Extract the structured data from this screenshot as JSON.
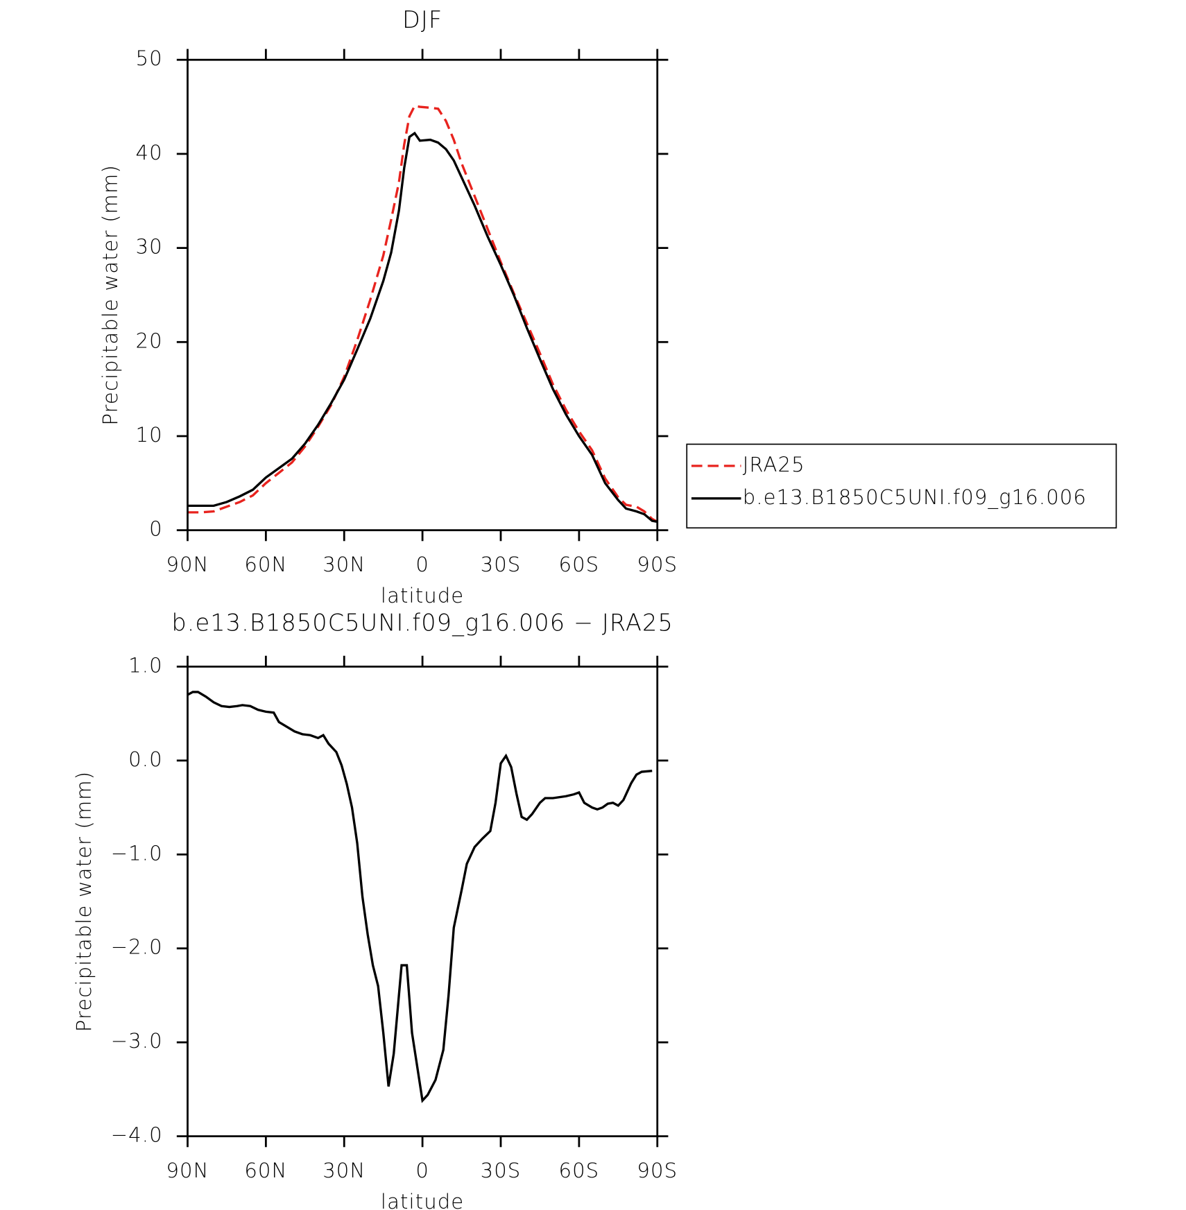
{
  "chart_data": [
    {
      "type": "line",
      "title": "DJF",
      "xlabel": "latitude",
      "ylabel": "Precipitable water (mm)",
      "x": [
        90,
        85,
        80,
        75,
        70,
        65,
        60,
        55,
        50,
        45,
        40,
        35,
        30,
        25,
        20,
        15,
        12,
        9,
        7,
        5,
        3,
        1,
        -3,
        -6,
        -9,
        -12,
        -15,
        -20,
        -25,
        -30,
        -35,
        -40,
        -45,
        -50,
        -55,
        -60,
        -65,
        -70,
        -75,
        -78,
        -82,
        -85,
        -88,
        -90
      ],
      "series": [
        {
          "name": "JRA25",
          "color": "#e8231e",
          "line_style": "dashed",
          "values": [
            1.9,
            1.9,
            2.0,
            2.5,
            3.0,
            3.7,
            5.0,
            6.1,
            7.2,
            8.9,
            11.0,
            13.3,
            16.3,
            20.2,
            24.5,
            29.2,
            33,
            37,
            41,
            44,
            45.1,
            45,
            44.9,
            44.8,
            43.5,
            41.5,
            39,
            35.5,
            32,
            28.5,
            25.2,
            22,
            18.8,
            15.5,
            12.8,
            10.5,
            8.5,
            5.5,
            3.5,
            2.7,
            2.5,
            2.0,
            1.2,
            0.9
          ]
        },
        {
          "name": "b.e13.B1850C5UNI.f09_g16.006",
          "color": "#000000",
          "line_style": "solid",
          "values": [
            2.6,
            2.6,
            2.6,
            3.0,
            3.6,
            4.3,
            5.6,
            6.6,
            7.6,
            9.2,
            11.2,
            13.5,
            16.0,
            19.2,
            22.5,
            26.5,
            29.5,
            34,
            38.5,
            41.8,
            42.2,
            41.4,
            41.5,
            41.2,
            40.5,
            39.3,
            37.5,
            34.5,
            31.2,
            28.2,
            25,
            21.5,
            18.2,
            15,
            12.3,
            10,
            8,
            5,
            3.2,
            2.3,
            2,
            1.7,
            1,
            0.9
          ]
        }
      ],
      "xlim": [
        90,
        -90
      ],
      "xticks": [
        {
          "value": 90,
          "label": "90N"
        },
        {
          "value": 60,
          "label": "60N"
        },
        {
          "value": 30,
          "label": "30N"
        },
        0,
        {
          "value": -30,
          "label": "30S"
        },
        {
          "value": -60,
          "label": "60S"
        },
        {
          "value": -90,
          "label": "90S"
        }
      ],
      "ylim": [
        0,
        50
      ],
      "yticks": [
        0,
        10,
        20,
        30,
        40,
        50
      ],
      "legend": "right"
    },
    {
      "type": "line",
      "title": "b.e13.B1850C5UNI.f09_g16.006 − JRA25",
      "xlabel": "latitude",
      "ylabel": "Precipitable water (mm)",
      "x": [
        90,
        88,
        86,
        83,
        80,
        77,
        74,
        71,
        69,
        66,
        63,
        60,
        57,
        55,
        52,
        49,
        46,
        43,
        40,
        38,
        36,
        33,
        31,
        29,
        27,
        25,
        23,
        21,
        19,
        17,
        15,
        13,
        11,
        8,
        6,
        4,
        0,
        -2,
        -5,
        -8,
        -10,
        -12,
        -15,
        -17,
        -20,
        -23,
        -26,
        -28,
        -30,
        -32,
        -34,
        -36,
        -38,
        -40,
        -42,
        -45,
        -47,
        -50,
        -55,
        -58,
        -60,
        -62,
        -65,
        -67,
        -69,
        -71,
        -73,
        -75,
        -77,
        -80,
        -82,
        -84,
        -88
      ],
      "values": [
        0.7,
        0.73,
        0.73,
        0.68,
        0.62,
        0.58,
        0.57,
        0.58,
        0.59,
        0.58,
        0.54,
        0.52,
        0.51,
        0.41,
        0.36,
        0.31,
        0.28,
        0.27,
        0.24,
        0.27,
        0.18,
        0.09,
        -0.05,
        -0.25,
        -0.5,
        -0.88,
        -1.45,
        -1.85,
        -2.18,
        -2.4,
        -2.9,
        -3.47,
        -3.12,
        -2.18,
        -2.18,
        -2.9,
        -3.62,
        -3.56,
        -3.4,
        -3.08,
        -2.5,
        -1.78,
        -1.38,
        -1.1,
        -0.92,
        -0.83,
        -0.75,
        -0.45,
        -0.03,
        0.05,
        -0.07,
        -0.35,
        -0.6,
        -0.63,
        -0.57,
        -0.45,
        -0.4,
        -0.4,
        -0.38,
        -0.36,
        -0.34,
        -0.45,
        -0.5,
        -0.52,
        -0.5,
        -0.46,
        -0.45,
        -0.48,
        -0.42,
        -0.24,
        -0.15,
        -0.12,
        -0.11
      ],
      "color": "#000000",
      "xlim": [
        90,
        -90
      ],
      "xticks": [
        {
          "value": 90,
          "label": "90N"
        },
        {
          "value": 60,
          "label": "60N"
        },
        {
          "value": 30,
          "label": "30N"
        },
        0,
        {
          "value": -30,
          "label": "30S"
        },
        {
          "value": -60,
          "label": "60S"
        },
        {
          "value": -90,
          "label": "90S"
        }
      ],
      "ylim": [
        -4,
        1
      ],
      "yticks": [
        {
          "value": -4,
          "label": "−4.0"
        },
        {
          "value": -3,
          "label": "−3.0"
        },
        {
          "value": -2,
          "label": "−2.0"
        },
        {
          "value": -1,
          "label": "−1.0"
        },
        {
          "value": 0,
          "label": "0.0"
        },
        {
          "value": 1,
          "label": "1.0"
        }
      ]
    }
  ]
}
